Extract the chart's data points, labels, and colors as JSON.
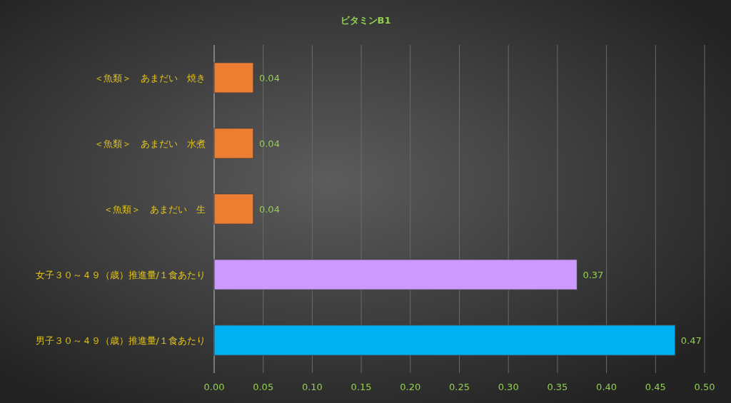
{
  "chart_data": {
    "type": "bar",
    "orientation": "horizontal",
    "title": "ビタミンB1",
    "categories": [
      "＜魚類＞　あまだい　焼き",
      "＜魚類＞　あまだい　水煮",
      "＜魚類＞　あまだい　生",
      "女子３０～４９（歳）推進量/１食あたり",
      "男子３０～４９（歳）推進量/１食あたり"
    ],
    "values": [
      0.04,
      0.04,
      0.04,
      0.37,
      0.47
    ],
    "colors": [
      "#ed7d31",
      "#ed7d31",
      "#ed7d31",
      "#cc99ff",
      "#00b0f0"
    ],
    "xlim": [
      0,
      0.5
    ],
    "xticks": [
      {
        "value": 0,
        "label": "0.00"
      },
      {
        "value": 0.05,
        "label": "0.05"
      },
      {
        "value": 0.1,
        "label": "0.10"
      },
      {
        "value": 0.15,
        "label": "0.15"
      },
      {
        "value": 0.2,
        "label": "0.20"
      },
      {
        "value": 0.25,
        "label": "0.25"
      },
      {
        "value": 0.3,
        "label": "0.30"
      },
      {
        "value": 0.35,
        "label": "0.35"
      },
      {
        "value": 0.4,
        "label": "0.40"
      },
      {
        "value": 0.45,
        "label": "0.45"
      },
      {
        "value": 0.5,
        "label": "0.50"
      }
    ],
    "grid": "x",
    "data_labels": true
  }
}
